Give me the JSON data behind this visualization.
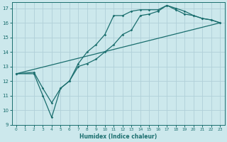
{
  "xlabel": "Humidex (Indice chaleur)",
  "xlim": [
    -0.5,
    23.5
  ],
  "ylim": [
    9,
    17.4
  ],
  "xticks": [
    0,
    1,
    2,
    3,
    4,
    5,
    6,
    7,
    8,
    9,
    10,
    11,
    12,
    13,
    14,
    15,
    16,
    17,
    18,
    19,
    20,
    21,
    22,
    23
  ],
  "yticks": [
    9,
    10,
    11,
    12,
    13,
    14,
    15,
    16,
    17
  ],
  "bg_color": "#cce8ec",
  "line_color": "#1a6e6e",
  "grid_color": "#b0d0d8",
  "line1_x": [
    0,
    2,
    3,
    4,
    5,
    6,
    7,
    8,
    9,
    10,
    11,
    12,
    13,
    14,
    15,
    16,
    17,
    18,
    19,
    20,
    21,
    22,
    23
  ],
  "line1_y": [
    12.5,
    12.6,
    11.5,
    10.5,
    11.5,
    12.0,
    13.0,
    13.2,
    13.5,
    14.0,
    14.5,
    15.2,
    15.5,
    16.5,
    16.6,
    16.8,
    17.2,
    17.0,
    16.8,
    16.5,
    16.3,
    16.2,
    16.0
  ],
  "line2_x": [
    0,
    2,
    3,
    4,
    5,
    6,
    7,
    8,
    9,
    10,
    11,
    12,
    13,
    14,
    15,
    16,
    17,
    18,
    19,
    20,
    21,
    22,
    23
  ],
  "line2_y": [
    12.5,
    12.5,
    11.0,
    9.5,
    11.5,
    12.0,
    13.2,
    14.0,
    14.5,
    15.2,
    16.5,
    16.5,
    16.8,
    16.9,
    16.9,
    16.9,
    17.2,
    16.9,
    16.6,
    16.5,
    16.3,
    16.2,
    16.0
  ],
  "line3_x": [
    0,
    23
  ],
  "line3_y": [
    12.5,
    16.0
  ]
}
